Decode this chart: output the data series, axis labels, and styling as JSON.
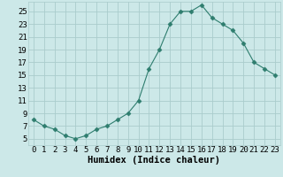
{
  "x": [
    0,
    1,
    2,
    3,
    4,
    5,
    6,
    7,
    8,
    9,
    10,
    11,
    12,
    13,
    14,
    15,
    16,
    17,
    18,
    19,
    20,
    21,
    22,
    23
  ],
  "y": [
    8,
    7,
    6.5,
    5.5,
    5,
    5.5,
    6.5,
    7,
    8,
    9,
    11,
    16,
    19,
    23,
    25,
    25,
    26,
    24,
    23,
    22,
    20,
    17,
    16,
    15
  ],
  "line_color": "#2e7d6e",
  "marker": "D",
  "marker_size": 2.5,
  "bg_color": "#cce8e8",
  "grid_color": "#aacccc",
  "xlabel": "Humidex (Indice chaleur)",
  "xlabel_fontsize": 7.5,
  "xlim": [
    -0.5,
    23.5
  ],
  "ylim": [
    4,
    26.5
  ],
  "yticks": [
    5,
    7,
    9,
    11,
    13,
    15,
    17,
    19,
    21,
    23,
    25
  ],
  "xticks": [
    0,
    1,
    2,
    3,
    4,
    5,
    6,
    7,
    8,
    9,
    10,
    11,
    12,
    13,
    14,
    15,
    16,
    17,
    18,
    19,
    20,
    21,
    22,
    23
  ],
  "tick_fontsize": 6.5
}
